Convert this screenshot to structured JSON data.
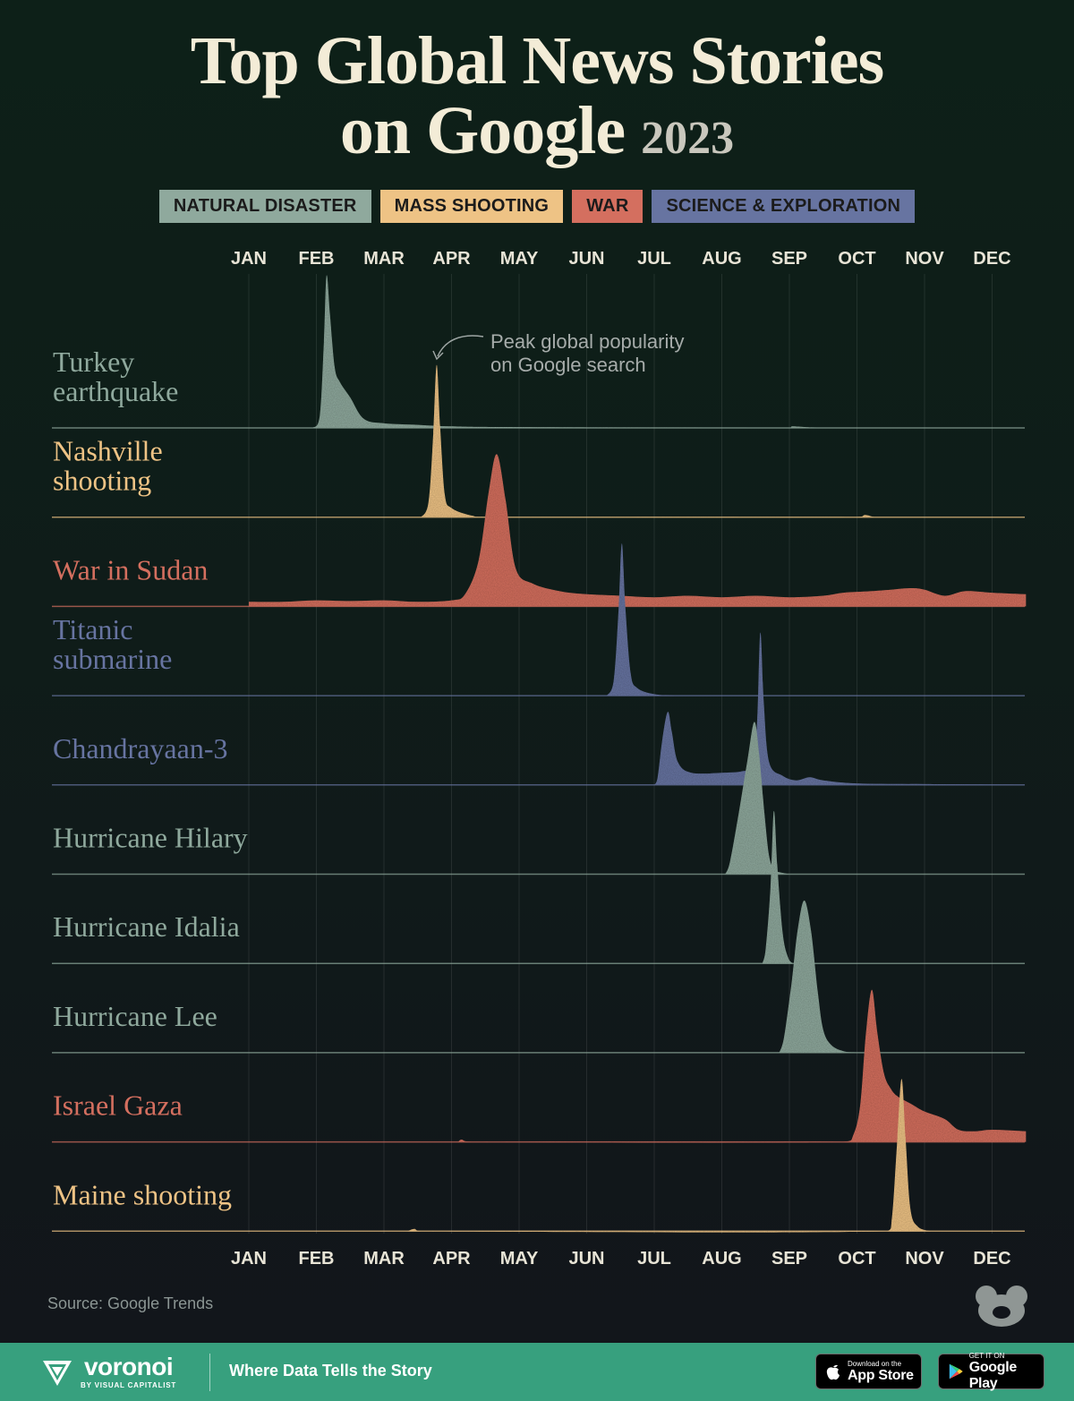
{
  "title": {
    "line1": "Top Global News Stories",
    "line2": "on Google",
    "year": "2023"
  },
  "legend": [
    {
      "label": "NATURAL DISASTER",
      "color": "#8fa99d"
    },
    {
      "label": "MASS SHOOTING",
      "color": "#eec385"
    },
    {
      "label": "WAR",
      "color": "#d46f5f"
    },
    {
      "label": "SCIENCE & EXPLORATION",
      "color": "#6774a1"
    }
  ],
  "annotation": {
    "line1": "Peak global popularity",
    "line2": "on Google search"
  },
  "source": "Source: Google Trends",
  "footer": {
    "brand": "voronoi",
    "brand_sub": "BY VISUAL CAPITALIST",
    "tagline": "Where Data Tells the Story",
    "app_store_small": "Download on the",
    "app_store_big": "App Store",
    "google_play_small": "GET IT ON",
    "google_play_big": "Google Play"
  },
  "chart_data": {
    "type": "area",
    "subtype": "ridgeline",
    "x_unit": "month (1 = Jan 1, 13 = Dec 31), 2023",
    "y_unit": "relative search interest (peak = 100)",
    "months": [
      "JAN",
      "FEB",
      "MAR",
      "APR",
      "MAY",
      "JUN",
      "JUL",
      "AUG",
      "SEP",
      "OCT",
      "NOV",
      "DEC"
    ],
    "xlim": [
      1,
      12.5
    ],
    "ylim": [
      0,
      100
    ],
    "series": [
      {
        "name": "Turkey earthquake",
        "label_lines": [
          "Turkey",
          "earthquake"
        ],
        "category": "NATURAL DISASTER",
        "color": "#8fa99d",
        "points": [
          [
            1.95,
            0
          ],
          [
            2.05,
            8
          ],
          [
            2.11,
            55
          ],
          [
            2.15,
            100
          ],
          [
            2.2,
            75
          ],
          [
            2.27,
            40
          ],
          [
            2.35,
            30
          ],
          [
            2.5,
            20
          ],
          [
            2.7,
            6
          ],
          [
            3.0,
            3
          ],
          [
            3.5,
            2
          ],
          [
            4.0,
            1
          ],
          [
            5.0,
            0.5
          ],
          [
            9.0,
            0
          ],
          [
            9.05,
            1
          ],
          [
            9.4,
            0
          ]
        ]
      },
      {
        "name": "Nashville shooting",
        "label_lines": [
          "Nashville",
          "shooting"
        ],
        "category": "MASS SHOOTING",
        "color": "#eec385",
        "points": [
          [
            3.55,
            0
          ],
          [
            3.66,
            10
          ],
          [
            3.73,
            55
          ],
          [
            3.78,
            100
          ],
          [
            3.83,
            60
          ],
          [
            3.9,
            15
          ],
          [
            4.0,
            6
          ],
          [
            4.3,
            1
          ],
          [
            4.6,
            0
          ],
          [
            10.0,
            0
          ],
          [
            10.12,
            1.5
          ],
          [
            10.25,
            0
          ]
        ]
      },
      {
        "name": "War in Sudan",
        "label_lines": [
          "War in Sudan"
        ],
        "category": "WAR",
        "color": "#d46f5f",
        "points": [
          [
            1.0,
            3
          ],
          [
            1.5,
            3
          ],
          [
            2.0,
            4
          ],
          [
            2.5,
            3.5
          ],
          [
            3.0,
            4
          ],
          [
            3.5,
            3
          ],
          [
            4.0,
            4
          ],
          [
            4.2,
            8
          ],
          [
            4.4,
            30
          ],
          [
            4.55,
            75
          ],
          [
            4.67,
            100
          ],
          [
            4.8,
            70
          ],
          [
            4.95,
            25
          ],
          [
            5.2,
            15
          ],
          [
            5.6,
            10
          ],
          [
            6.0,
            8
          ],
          [
            6.5,
            7
          ],
          [
            7.0,
            6
          ],
          [
            7.5,
            7
          ],
          [
            8.0,
            6
          ],
          [
            8.5,
            7
          ],
          [
            9.0,
            6
          ],
          [
            9.5,
            7
          ],
          [
            9.8,
            9
          ],
          [
            10.2,
            10
          ],
          [
            10.5,
            11
          ],
          [
            10.8,
            12
          ],
          [
            11.0,
            11
          ],
          [
            11.3,
            7
          ],
          [
            11.6,
            10
          ],
          [
            12.0,
            9
          ],
          [
            12.5,
            8
          ]
        ]
      },
      {
        "name": "Titanic submarine",
        "label_lines": [
          "Titanic",
          "submarine"
        ],
        "category": "SCIENCE & EXPLORATION",
        "color": "#6774a1",
        "points": [
          [
            6.3,
            0
          ],
          [
            6.4,
            10
          ],
          [
            6.47,
            55
          ],
          [
            6.52,
            100
          ],
          [
            6.57,
            60
          ],
          [
            6.65,
            15
          ],
          [
            6.75,
            5
          ],
          [
            7.0,
            1
          ],
          [
            7.3,
            0
          ]
        ]
      },
      {
        "name": "Chandrayaan-3",
        "label_lines": [
          "Chandrayaan-3"
        ],
        "category": "SCIENCE & EXPLORATION",
        "color": "#6774a1",
        "points": [
          [
            7.0,
            0
          ],
          [
            7.05,
            5
          ],
          [
            7.12,
            30
          ],
          [
            7.2,
            48
          ],
          [
            7.26,
            35
          ],
          [
            7.35,
            15
          ],
          [
            7.55,
            8
          ],
          [
            8.0,
            8
          ],
          [
            8.3,
            9
          ],
          [
            8.45,
            13
          ],
          [
            8.52,
            40
          ],
          [
            8.57,
            100
          ],
          [
            8.62,
            55
          ],
          [
            8.7,
            15
          ],
          [
            8.9,
            6
          ],
          [
            9.1,
            3
          ],
          [
            9.3,
            5
          ],
          [
            9.5,
            3
          ],
          [
            10.0,
            1
          ],
          [
            11.0,
            0.5
          ],
          [
            12.5,
            0
          ]
        ]
      },
      {
        "name": "Hurricane Hilary",
        "label_lines": [
          "Hurricane Hilary"
        ],
        "category": "NATURAL DISASTER",
        "color": "#8fa99d",
        "points": [
          [
            8.05,
            0
          ],
          [
            8.12,
            8
          ],
          [
            8.25,
            40
          ],
          [
            8.38,
            75
          ],
          [
            8.48,
            100
          ],
          [
            8.55,
            80
          ],
          [
            8.63,
            40
          ],
          [
            8.7,
            12
          ],
          [
            8.78,
            3
          ],
          [
            8.88,
            1
          ],
          [
            9.0,
            0
          ]
        ]
      },
      {
        "name": "Hurricane Idalia",
        "label_lines": [
          "Hurricane Idalia"
        ],
        "category": "NATURAL DISASTER",
        "color": "#8fa99d",
        "points": [
          [
            8.6,
            0
          ],
          [
            8.65,
            10
          ],
          [
            8.72,
            50
          ],
          [
            8.77,
            100
          ],
          [
            8.82,
            65
          ],
          [
            8.9,
            20
          ],
          [
            8.98,
            4
          ],
          [
            9.05,
            0
          ]
        ]
      },
      {
        "name": "Hurricane Lee",
        "label_lines": [
          "Hurricane Lee"
        ],
        "category": "NATURAL DISASTER",
        "color": "#8fa99d",
        "points": [
          [
            8.85,
            0
          ],
          [
            8.92,
            10
          ],
          [
            9.03,
            45
          ],
          [
            9.12,
            80
          ],
          [
            9.22,
            100
          ],
          [
            9.32,
            80
          ],
          [
            9.42,
            40
          ],
          [
            9.5,
            15
          ],
          [
            9.62,
            5
          ],
          [
            9.8,
            1
          ],
          [
            10.0,
            0
          ]
        ]
      },
      {
        "name": "Israel Gaza",
        "label_lines": [
          "Israel Gaza"
        ],
        "category": "WAR",
        "color": "#d46f5f",
        "points": [
          [
            4.1,
            0
          ],
          [
            4.15,
            1.5
          ],
          [
            4.3,
            0
          ],
          [
            9.8,
            0
          ],
          [
            9.95,
            5
          ],
          [
            10.05,
            25
          ],
          [
            10.13,
            70
          ],
          [
            10.22,
            100
          ],
          [
            10.3,
            72
          ],
          [
            10.4,
            45
          ],
          [
            10.5,
            35
          ],
          [
            10.6,
            30
          ],
          [
            10.8,
            25
          ],
          [
            11.0,
            20
          ],
          [
            11.3,
            15
          ],
          [
            11.5,
            8
          ],
          [
            11.75,
            7
          ],
          [
            12.0,
            8
          ],
          [
            12.5,
            7
          ]
        ]
      },
      {
        "name": "Maine shooting",
        "label_lines": [
          "Maine shooting"
        ],
        "category": "MASS SHOOTING",
        "color": "#eec385",
        "points": [
          [
            3.35,
            0
          ],
          [
            3.45,
            1.5
          ],
          [
            3.55,
            0
          ],
          [
            10.45,
            0
          ],
          [
            10.52,
            10
          ],
          [
            10.59,
            55
          ],
          [
            10.66,
            100
          ],
          [
            10.72,
            60
          ],
          [
            10.79,
            15
          ],
          [
            10.9,
            3
          ],
          [
            11.1,
            0
          ]
        ]
      }
    ]
  }
}
